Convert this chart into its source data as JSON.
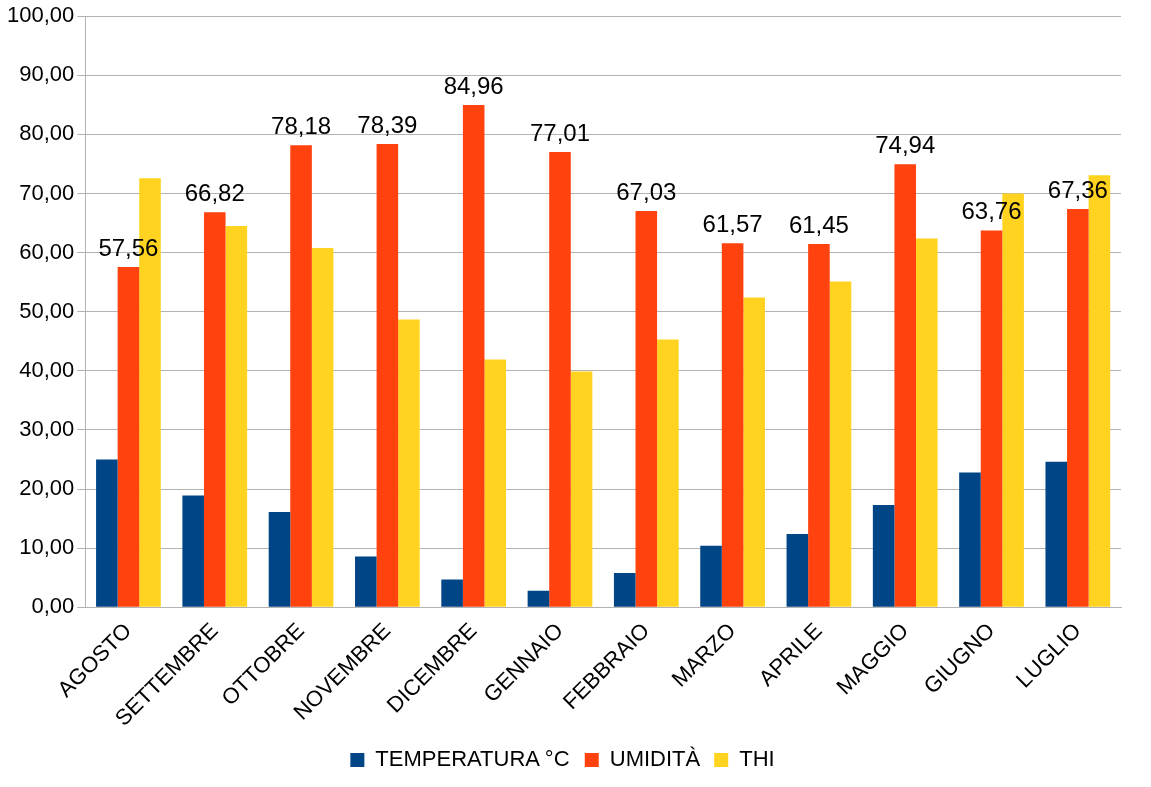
{
  "chart_data": {
    "type": "bar",
    "categories": [
      "AGOSTO",
      "SETTEMBRE",
      "OTTOBRE",
      "NOVEMBRE",
      "DICEMBRE",
      "GENNAIO",
      "FEBBRAIO",
      "MARZO",
      "APRILE",
      "MAGGIO",
      "GIUGNO",
      "LUGLIO"
    ],
    "series": [
      {
        "name": "TEMPERATURA °C",
        "color": "#004586",
        "values": [
          25.0,
          18.9,
          16.1,
          8.6,
          4.7,
          2.8,
          5.8,
          10.4,
          12.4,
          17.3,
          22.8,
          24.6
        ]
      },
      {
        "name": "UMIDITÀ",
        "color": "#ff420e",
        "values": [
          57.56,
          66.82,
          78.18,
          78.39,
          84.96,
          77.01,
          67.03,
          61.57,
          61.45,
          74.94,
          63.76,
          67.36
        ],
        "value_labels": [
          "57,56",
          "66,82",
          "78,18",
          "78,39",
          "84,96",
          "77,01",
          "67,03",
          "61,57",
          "61,45",
          "74,94",
          "63,76",
          "67,36"
        ]
      },
      {
        "name": "THI",
        "color": "#ffd320",
        "values": [
          72.6,
          64.5,
          60.8,
          48.7,
          41.9,
          39.9,
          45.3,
          52.4,
          55.1,
          62.4,
          70.0,
          73.1
        ]
      }
    ],
    "ylim": [
      0,
      100
    ],
    "yticks": [
      {
        "value": 0,
        "label": "0,00"
      },
      {
        "value": 10,
        "label": "10,00"
      },
      {
        "value": 20,
        "label": "20,00"
      },
      {
        "value": 30,
        "label": "30,00"
      },
      {
        "value": 40,
        "label": "40,00"
      },
      {
        "value": 50,
        "label": "50,00"
      },
      {
        "value": 60,
        "label": "60,00"
      },
      {
        "value": 70,
        "label": "70,00"
      },
      {
        "value": 80,
        "label": "80,00"
      },
      {
        "value": 90,
        "label": "90,00"
      },
      {
        "value": 100,
        "label": "100,00"
      }
    ],
    "grid": "y",
    "legend": "bottom"
  }
}
